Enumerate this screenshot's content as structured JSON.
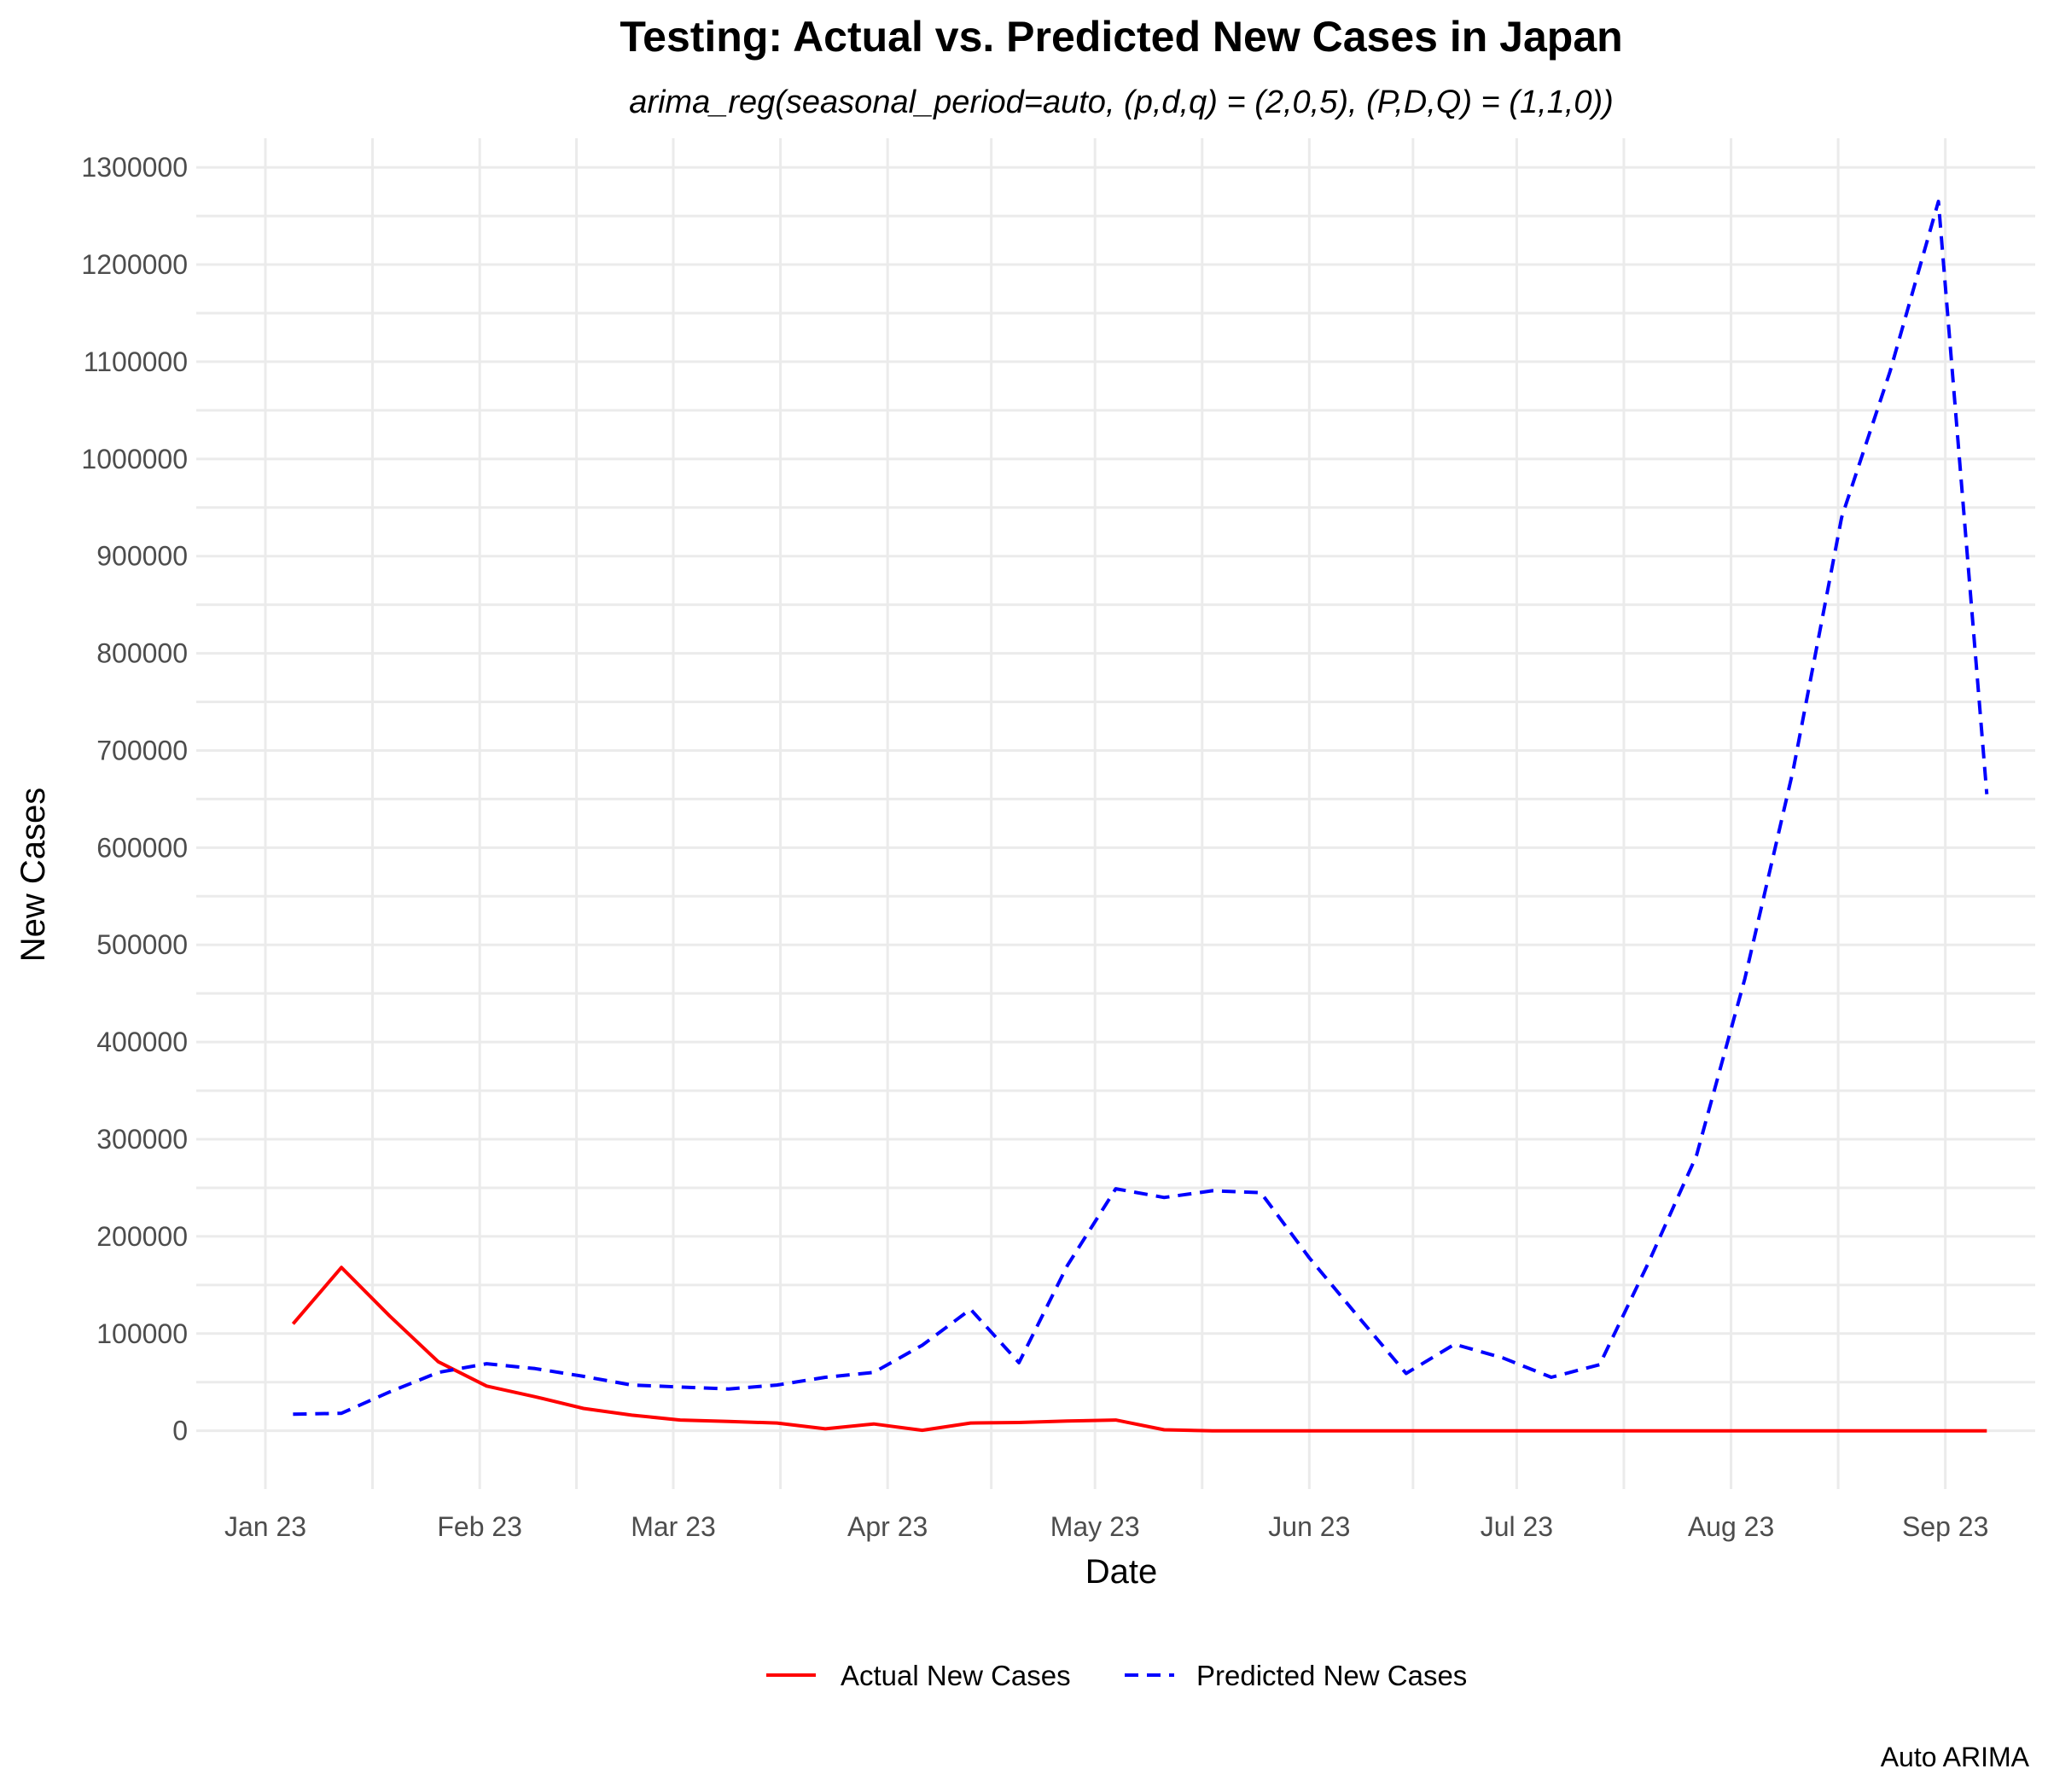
{
  "chart_data": {
    "type": "line",
    "title": "Testing: Actual vs. Predicted New Cases in Japan",
    "subtitle": "arima_reg(seasonal_period=auto, (p,d,q) = (2,0,5), (P,D,Q) = (1,1,0))",
    "xlabel": "Date",
    "ylabel": "New Cases",
    "caption": "Auto ARIMA",
    "grid": true,
    "legend_position": "bottom",
    "x_tick_labels": [
      "Jan 23",
      "Feb 23",
      "Mar 23",
      "Apr 23",
      "May 23",
      "Jun 23",
      "Jul 23",
      "Aug 23",
      "Sep 23"
    ],
    "x_tick_dates": [
      "2023-01-01",
      "2023-02-01",
      "2023-03-01",
      "2023-04-01",
      "2023-05-01",
      "2023-06-01",
      "2023-07-01",
      "2023-08-01",
      "2023-09-01"
    ],
    "xlim": [
      "2022-12-22",
      "2023-09-14"
    ],
    "y_ticks": [
      0,
      100000,
      200000,
      300000,
      400000,
      500000,
      600000,
      700000,
      800000,
      900000,
      1000000,
      1100000,
      1200000,
      1300000
    ],
    "y_tick_labels": [
      "0",
      "100000",
      "200000",
      "300000",
      "400000",
      "500000",
      "600000",
      "700000",
      "800000",
      "900000",
      "1000000",
      "1100000",
      "1200000",
      "1300000"
    ],
    "ylim": [
      -60000,
      1330000
    ],
    "x": [
      "2023-01-05",
      "2023-01-12",
      "2023-01-19",
      "2023-01-26",
      "2023-02-02",
      "2023-02-09",
      "2023-02-16",
      "2023-02-23",
      "2023-03-02",
      "2023-03-09",
      "2023-03-16",
      "2023-03-23",
      "2023-03-30",
      "2023-04-06",
      "2023-04-13",
      "2023-04-20",
      "2023-04-27",
      "2023-05-04",
      "2023-05-11",
      "2023-05-18",
      "2023-05-25",
      "2023-06-01",
      "2023-06-08",
      "2023-06-15",
      "2023-06-22",
      "2023-06-29",
      "2023-07-06",
      "2023-07-13",
      "2023-07-20",
      "2023-07-27",
      "2023-08-03",
      "2023-08-10",
      "2023-08-17",
      "2023-08-24",
      "2023-08-31",
      "2023-09-07"
    ],
    "series": [
      {
        "name": "Actual New Cases",
        "color": "#ff0000",
        "dash": "solid",
        "values": [
          110000,
          168000,
          118000,
          71000,
          46000,
          35000,
          23000,
          16000,
          11000,
          9500,
          8000,
          2000,
          7000,
          500,
          8000,
          8500,
          10000,
          11000,
          1000,
          0,
          0,
          0,
          0,
          0,
          0,
          0,
          0,
          0,
          0,
          0,
          0,
          0,
          0,
          0,
          0,
          0
        ]
      },
      {
        "name": "Predicted New Cases",
        "color": "#0000ff",
        "dash": "dashed",
        "values": [
          17000,
          18000,
          40000,
          60000,
          69000,
          64000,
          56000,
          47000,
          45000,
          43000,
          47000,
          55000,
          60000,
          88000,
          125000,
          70000,
          170000,
          249000,
          240000,
          247000,
          245000,
          178000,
          118000,
          59000,
          89000,
          75000,
          55000,
          68000,
          172000,
          283000,
          465000,
          680000,
          940000,
          1090000,
          1265000,
          655000
        ]
      }
    ]
  }
}
